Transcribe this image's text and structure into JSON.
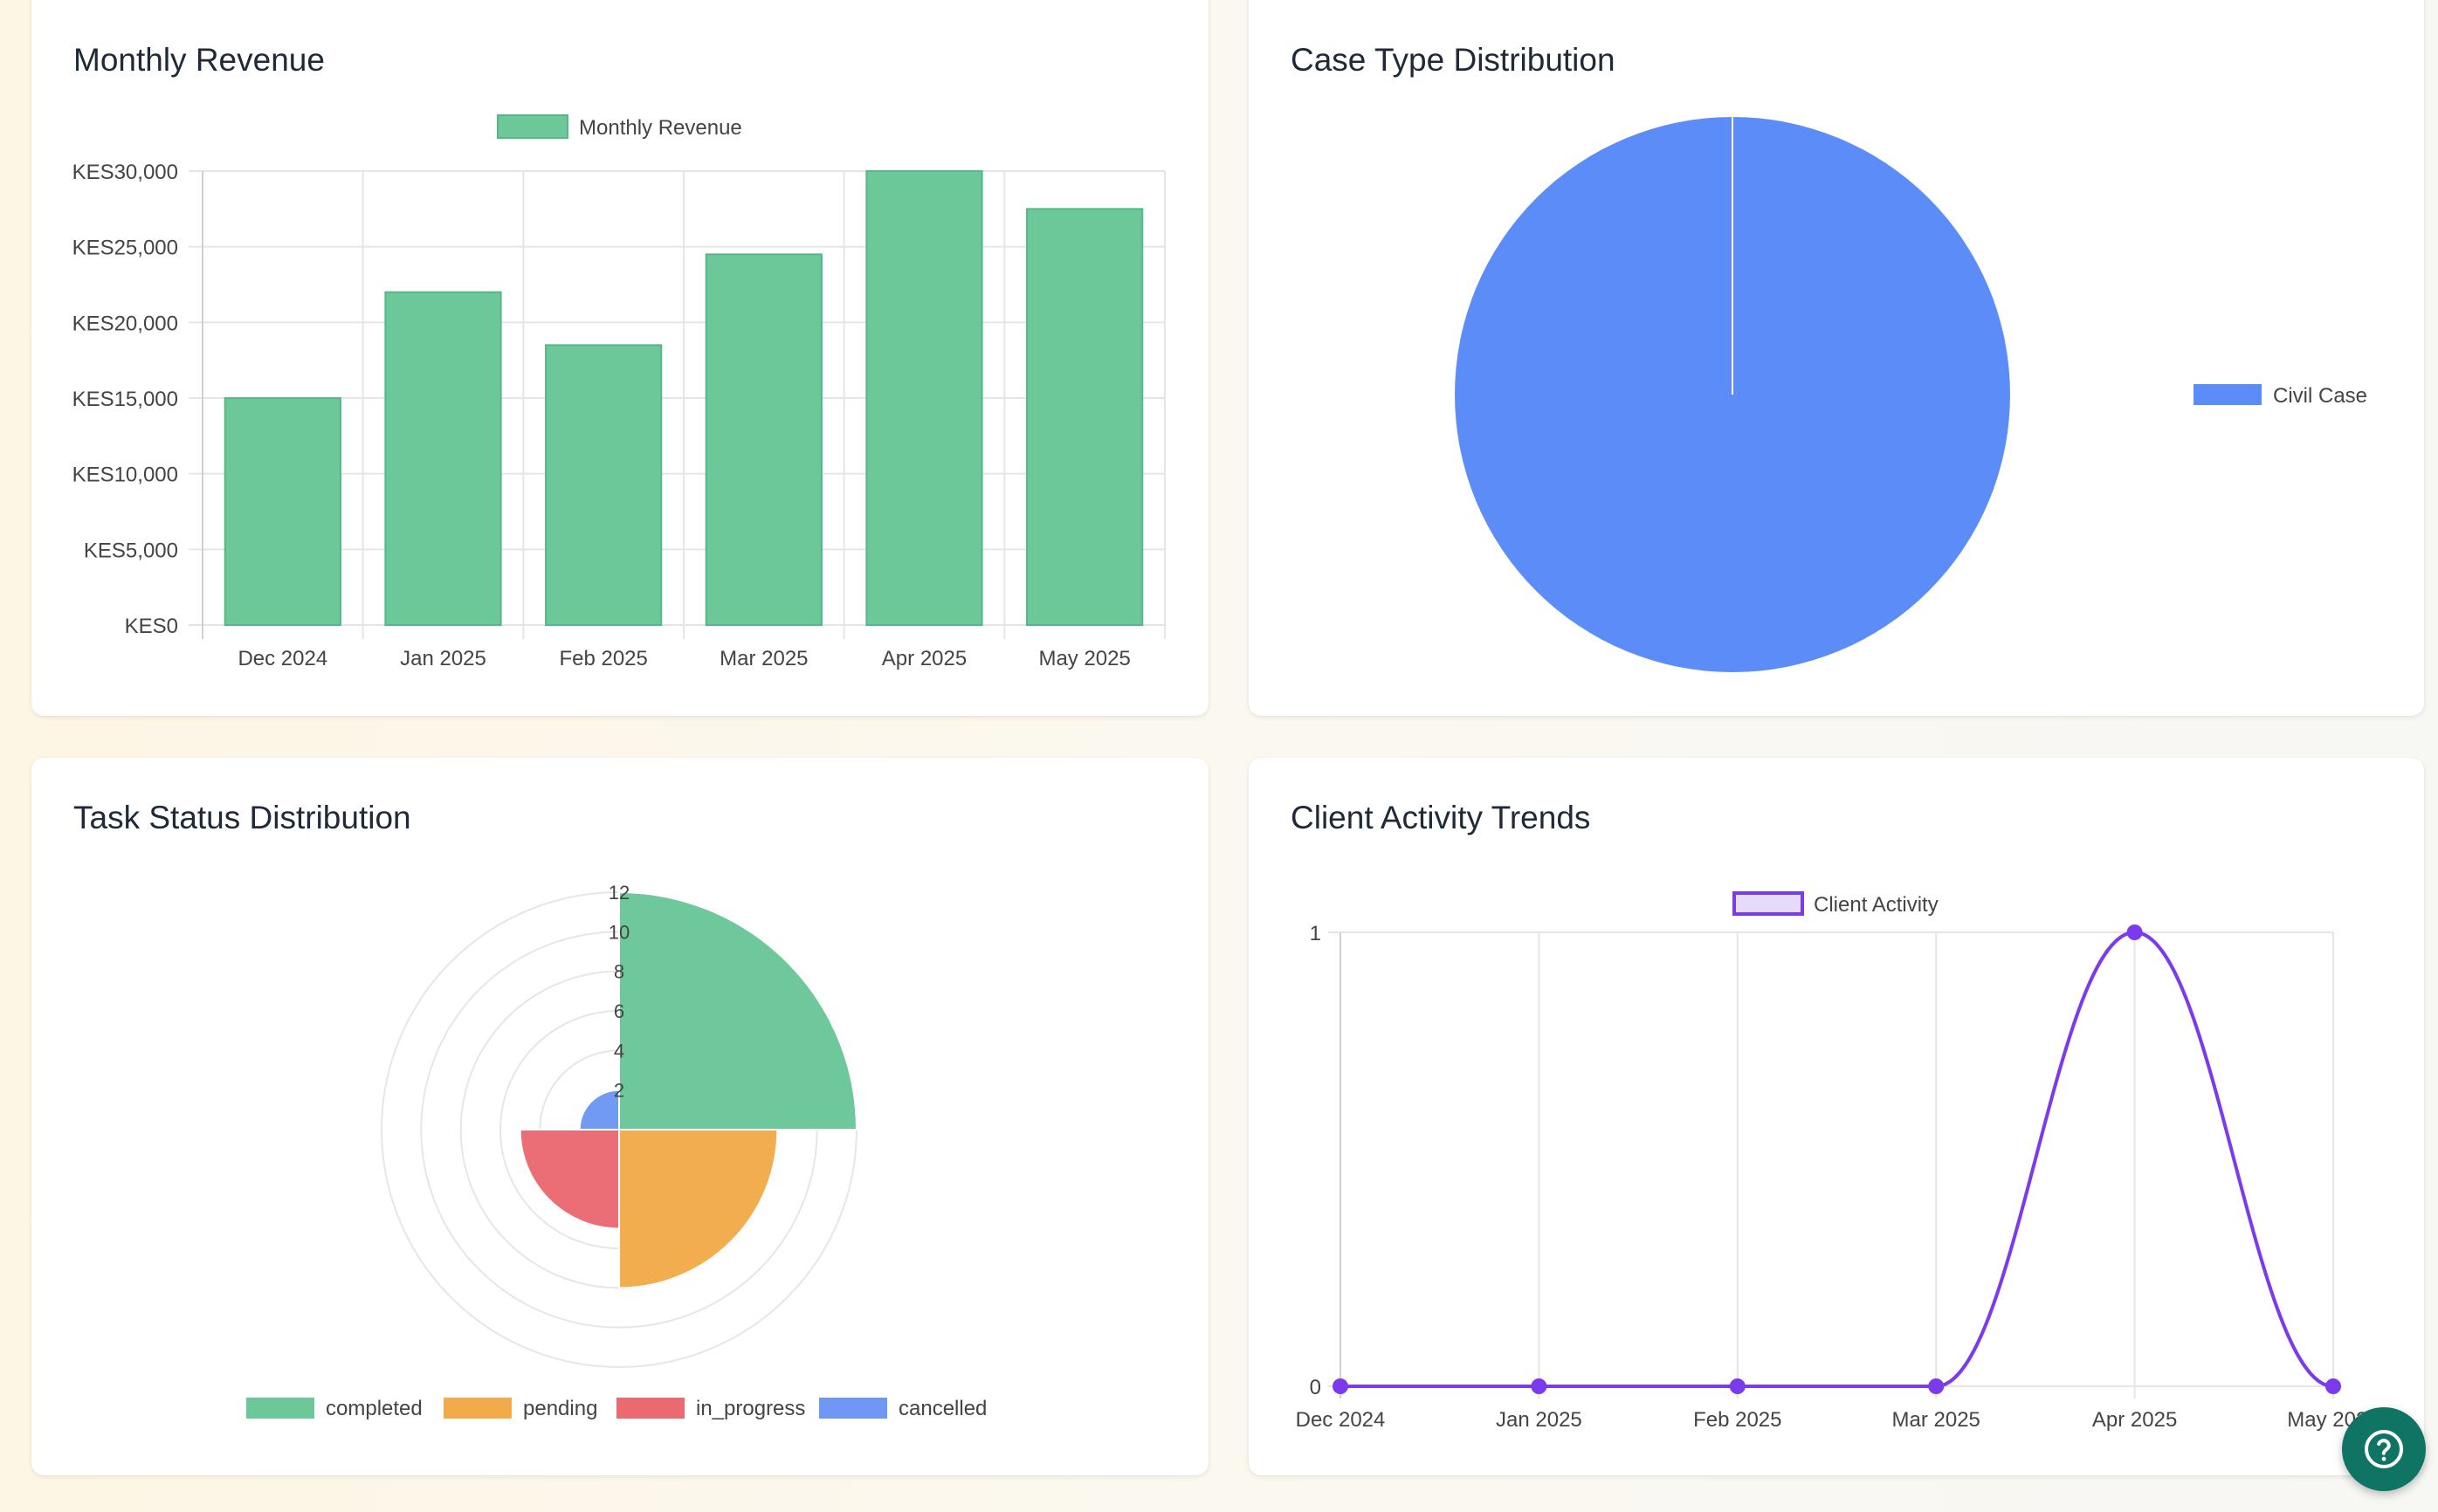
{
  "cards": {
    "revenue": {
      "title": "Monthly Revenue"
    },
    "case_type": {
      "title": "Case Type Distribution"
    },
    "task_status": {
      "title": "Task Status Distribution"
    },
    "client_activity": {
      "title": "Client Activity Trends"
    }
  },
  "help_button": {
    "icon": "help-circle-icon",
    "color": "#0f7463"
  },
  "chart_data": [
    {
      "id": "revenue",
      "type": "bar",
      "title": "Monthly Revenue",
      "categories": [
        "Dec 2024",
        "Jan 2025",
        "Feb 2025",
        "Mar 2025",
        "Apr 2025",
        "May 2025"
      ],
      "series": [
        {
          "name": "Monthly Revenue",
          "values": [
            15000,
            22000,
            18500,
            24500,
            30000,
            27500
          ]
        }
      ],
      "yticks": [
        "KES0",
        "KES5,000",
        "KES10,000",
        "KES15,000",
        "KES20,000",
        "KES25,000",
        "KES30,000"
      ],
      "ylim": [
        0,
        30000
      ],
      "grid": true,
      "legend": "top",
      "color": "#6cc799"
    },
    {
      "id": "case_type",
      "type": "pie",
      "title": "Case Type Distribution",
      "labels": [
        "Civil Case"
      ],
      "values": [
        1
      ],
      "colors": [
        "#5b8cf7"
      ],
      "legend": "right"
    },
    {
      "id": "task_status",
      "type": "polarArea",
      "title": "Task Status Distribution",
      "labels": [
        "completed",
        "pending",
        "in_progress",
        "cancelled"
      ],
      "values": [
        12,
        8,
        5,
        2
      ],
      "colors": [
        "#6cc799",
        "#f2ab4a",
        "#eb6a72",
        "#6e98f3"
      ],
      "rticks": [
        "2",
        "4",
        "6",
        "8",
        "10",
        "12"
      ],
      "rmax": 12,
      "legend": "bottom"
    },
    {
      "id": "client_activity",
      "type": "line",
      "title": "Client Activity Trends",
      "categories": [
        "Dec 2024",
        "Jan 2025",
        "Feb 2025",
        "Mar 2025",
        "Apr 2025",
        "May 2025"
      ],
      "series": [
        {
          "name": "Client Activity",
          "values": [
            0,
            0,
            0,
            0,
            1,
            0
          ]
        }
      ],
      "yticks": [
        "0",
        "1"
      ],
      "ylim": [
        0,
        1
      ],
      "grid": true,
      "legend": "top",
      "color": "#7c3aed"
    }
  ]
}
